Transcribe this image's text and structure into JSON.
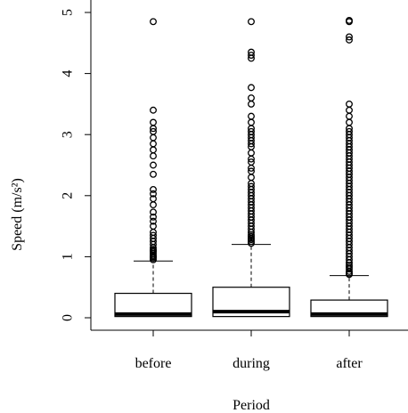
{
  "chart_data": {
    "type": "boxplot",
    "xlabel": "Period",
    "ylabel": "Speed (m/s²)",
    "ylim": [
      0,
      5
    ],
    "yticks": [
      0,
      1,
      2,
      3,
      4,
      5
    ],
    "categories": [
      "before",
      "during",
      "after"
    ],
    "grid": false,
    "boxes": [
      {
        "category": "before",
        "min": 0.0,
        "q1": 0.02,
        "median": 0.06,
        "q3": 0.4,
        "whisker_high": 0.93,
        "outliers": [
          0.95,
          0.98,
          1.0,
          1.02,
          1.05,
          1.08,
          1.1,
          1.12,
          1.15,
          1.2,
          1.25,
          1.3,
          1.35,
          1.4,
          1.5,
          1.58,
          1.65,
          1.73,
          1.85,
          1.95,
          2.03,
          2.1,
          2.35,
          2.5,
          2.65,
          2.75,
          2.85,
          2.95,
          3.05,
          3.1,
          3.2,
          3.4,
          4.85
        ]
      },
      {
        "category": "during",
        "min": 0.0,
        "q1": 0.02,
        "median": 0.1,
        "q3": 0.5,
        "whisker_high": 1.2,
        "outliers": [
          1.22,
          1.25,
          1.28,
          1.3,
          1.33,
          1.36,
          1.4,
          1.45,
          1.5,
          1.55,
          1.6,
          1.65,
          1.7,
          1.75,
          1.8,
          1.85,
          1.9,
          1.95,
          2.0,
          2.05,
          2.1,
          2.15,
          2.2,
          2.3,
          2.4,
          2.45,
          2.55,
          2.6,
          2.7,
          2.8,
          2.85,
          2.9,
          2.95,
          3.0,
          3.05,
          3.1,
          3.2,
          3.3,
          3.5,
          3.6,
          3.77,
          4.25,
          4.3,
          4.35,
          4.85
        ]
      },
      {
        "category": "after",
        "min": 0.0,
        "q1": 0.02,
        "median": 0.06,
        "q3": 0.29,
        "whisker_high": 0.69,
        "outliers": [
          0.71,
          0.73,
          0.76,
          0.8,
          0.83,
          0.86,
          0.9,
          0.95,
          1.0,
          1.05,
          1.1,
          1.15,
          1.2,
          1.25,
          1.3,
          1.35,
          1.4,
          1.45,
          1.5,
          1.55,
          1.6,
          1.65,
          1.7,
          1.75,
          1.8,
          1.85,
          1.9,
          1.95,
          2.0,
          2.05,
          2.1,
          2.15,
          2.2,
          2.25,
          2.3,
          2.35,
          2.4,
          2.45,
          2.5,
          2.55,
          2.6,
          2.65,
          2.7,
          2.75,
          2.8,
          2.85,
          2.9,
          2.95,
          3.0,
          3.05,
          3.1,
          3.2,
          3.3,
          3.4,
          3.5,
          4.55,
          4.6,
          4.85,
          4.87
        ]
      }
    ]
  }
}
